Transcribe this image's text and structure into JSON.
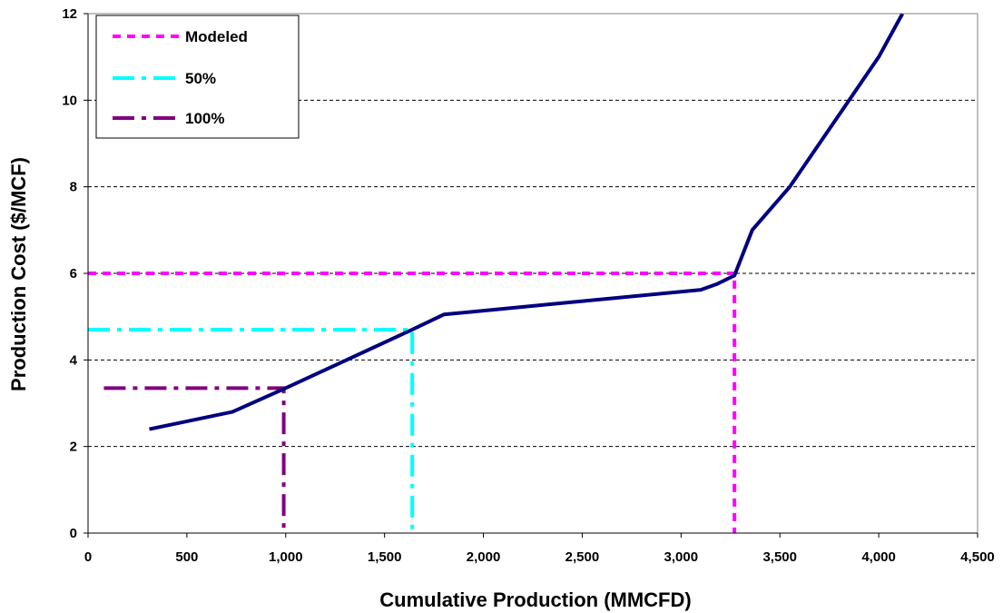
{
  "chart_data": {
    "type": "line",
    "title": "",
    "xlabel": "Cumulative Production (MMCFD)",
    "ylabel": "Production Cost ($/MCF)",
    "xlim": [
      0,
      4500
    ],
    "ylim": [
      0,
      12
    ],
    "x_ticks": [
      0,
      500,
      1000,
      1500,
      2000,
      2500,
      3000,
      3500,
      4000,
      4500
    ],
    "x_tick_labels": [
      "0",
      "500",
      "1,000",
      "1,500",
      "2,000",
      "2,500",
      "3,000",
      "3,500",
      "4,000",
      "4,500"
    ],
    "y_ticks": [
      0,
      2,
      4,
      6,
      8,
      10,
      12
    ],
    "y_tick_labels": [
      "0",
      "2",
      "4",
      "6",
      "8",
      "10",
      "12"
    ],
    "grid": "horizontal dashed",
    "legend_position": "top-left",
    "supply_curve": {
      "color": "#000080",
      "x": [
        310,
        730,
        1000,
        1640,
        1800,
        3100,
        3180,
        3270,
        3360,
        3550,
        3700,
        3850,
        4000,
        4120
      ],
      "y": [
        2.4,
        2.8,
        3.35,
        4.7,
        5.05,
        5.62,
        5.75,
        5.95,
        7.0,
        8.0,
        9.0,
        10.0,
        11.0,
        12.0
      ]
    },
    "series": [
      {
        "name": "Modeled",
        "color": "#ff00ff",
        "dash": "dashed",
        "x_start": 0,
        "y_start": 6.0,
        "x_corner": 3270,
        "y_corner": 6.0,
        "x_end": 3270,
        "y_end": 0
      },
      {
        "name": "50%",
        "color": "#00ffff",
        "dash": "dash-dot",
        "x_start": 0,
        "y_start": 4.7,
        "x_corner": 1640,
        "y_corner": 4.7,
        "x_end": 1640,
        "y_end": 0
      },
      {
        "name": "100%",
        "color": "#800080",
        "dash": "dash-dot",
        "x_start": 80,
        "y_start": 3.35,
        "x_corner": 990,
        "y_corner": 3.35,
        "x_end": 990,
        "y_end": 0
      }
    ]
  }
}
